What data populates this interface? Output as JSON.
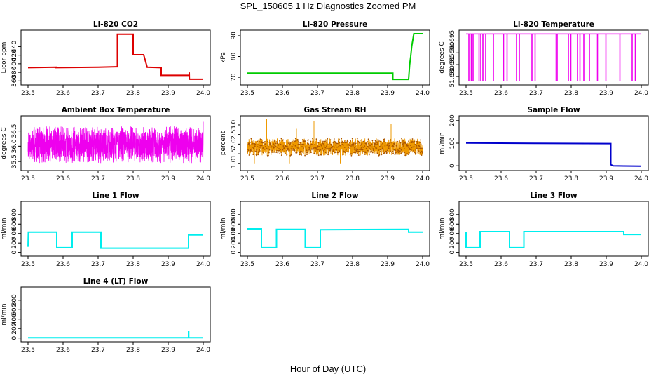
{
  "figure": {
    "title": "SPL_150605  1 Hz Diagnostics Zoomed PM",
    "x_axis_title": "Hour of Day (UTC)"
  },
  "chart_data": [
    {
      "type": "line",
      "title": "Li-820 CO2",
      "xlabel": "",
      "ylabel": "Licor ppm",
      "color": "#dd0000",
      "xlim": [
        23.5,
        24.0
      ],
      "ylim": [
        354,
        475
      ],
      "xticks": [
        "23.5",
        "23.6",
        "23.7",
        "23.8",
        "23.9",
        "24.0"
      ],
      "yticks": [
        "360",
        "380",
        "400",
        "420",
        "440"
      ],
      "x": [
        23.5,
        23.58,
        23.58,
        23.7,
        23.75,
        23.755,
        23.755,
        23.8,
        23.8,
        23.83,
        23.83,
        23.84,
        23.84,
        23.88,
        23.88,
        23.96,
        23.96,
        23.9605,
        23.9605,
        24.0
      ],
      "series": [
        {
          "values": [
            391,
            392,
            391,
            392,
            393,
            393,
            469,
            469,
            421,
            421,
            421,
            392,
            392,
            391,
            373,
            373,
            380,
            364,
            364,
            364
          ]
        }
      ],
      "grid": false,
      "legend": "none"
    },
    {
      "type": "line",
      "title": "Li-820 Pressure",
      "xlabel": "",
      "ylabel": "kPa",
      "color": "#00cc00",
      "xlim": [
        23.5,
        24.0
      ],
      "ylim": [
        67,
        92
      ],
      "xticks": [
        "23.5",
        "23.6",
        "23.7",
        "23.8",
        "23.9",
        "24.0"
      ],
      "yticks": [
        "70",
        "80",
        "90"
      ],
      "x": [
        23.5,
        23.915,
        23.915,
        23.96,
        23.963,
        23.966,
        23.969,
        23.972,
        23.975,
        24.0
      ],
      "series": [
        {
          "values": [
            72,
            72,
            69,
            69,
            76,
            80,
            85,
            88,
            91,
            91
          ]
        }
      ],
      "grid": false,
      "legend": "none"
    },
    {
      "type": "line",
      "title": "Li-820 Temperature",
      "xlabel": "",
      "ylabel": "degrees C",
      "color": "#ee00ee",
      "xlim": [
        23.5,
        24.0
      ],
      "ylim": [
        51.677,
        51.699
      ],
      "xticks": [
        "23.5",
        "23.6",
        "23.7",
        "23.8",
        "23.9",
        "24.0"
      ],
      "yticks": [
        "51.680",
        "51.685",
        "51.690",
        "51.695"
      ],
      "baseline": 51.698,
      "low_value": 51.678,
      "spikes_x": [
        23.508,
        23.515,
        23.52,
        23.537,
        23.542,
        23.548,
        23.556,
        23.578,
        23.607,
        23.617,
        23.644,
        23.652,
        23.688,
        23.697,
        23.757,
        23.76,
        23.792,
        23.799,
        23.818,
        23.825,
        23.836,
        23.852,
        23.875,
        23.899,
        23.939,
        23.974,
        23.983
      ],
      "grid": false,
      "legend": "none"
    },
    {
      "type": "line",
      "title": "Ambient Box Temperature",
      "xlabel": "",
      "ylabel": "degrees C",
      "color": "#ee00ee",
      "xlim": [
        23.5,
        24.0
      ],
      "ylim": [
        35.25,
        36.95
      ],
      "xticks": [
        "23.5",
        "23.6",
        "23.7",
        "23.8",
        "23.9",
        "24.0"
      ],
      "yticks": [
        "35.5",
        "36.0",
        "36.5"
      ],
      "noise": {
        "center": 36.0,
        "low": 35.45,
        "high": 36.65,
        "samples": 1800,
        "seed": 7,
        "end_value": 36.8
      },
      "grid": false,
      "legend": "none"
    },
    {
      "type": "scatter",
      "title": "Gas Stream RH",
      "xlabel": "",
      "ylabel": "percent",
      "color": "#ee9900",
      "xlim": [
        23.5,
        24.0
      ],
      "ylim": [
        0.7,
        3.4
      ],
      "xticks": [
        "23.5",
        "23.6",
        "23.7",
        "23.8",
        "23.9",
        "24.0"
      ],
      "yticks": [
        "1.0",
        "1.5",
        "2.0",
        "2.5",
        "3.0"
      ],
      "noise": {
        "center": 1.85,
        "low": 1.4,
        "high": 2.3,
        "samples": 1800,
        "seed": 11,
        "outliers": [
          [
            23.555,
            3.3
          ],
          [
            23.69,
            3.2
          ],
          [
            23.64,
            2.8
          ],
          [
            23.91,
            3.05
          ],
          [
            23.52,
            1.0
          ],
          [
            23.62,
            1.0
          ],
          [
            23.765,
            1.0
          ],
          [
            23.995,
            0.85
          ]
        ]
      },
      "grid": false,
      "legend": "none"
    },
    {
      "type": "line",
      "title": "Sample Flow",
      "xlabel": "",
      "ylabel": "ml/min",
      "color": "#0000cc",
      "xlim": [
        23.5,
        24.0
      ],
      "ylim": [
        -15,
        215
      ],
      "xticks": [
        "23.5",
        "23.6",
        "23.7",
        "23.8",
        "23.9",
        "24.0"
      ],
      "yticks": [
        "0",
        "100",
        "200"
      ],
      "x": [
        23.5,
        23.7,
        23.913,
        23.913,
        23.92,
        23.95,
        24.0
      ],
      "series": [
        {
          "values": [
            101,
            99,
            98,
            5,
            0,
            -1,
            -2
          ]
        }
      ],
      "grid": false,
      "legend": "none"
    },
    {
      "type": "line",
      "title": "Line 1 Flow",
      "xlabel": "",
      "ylabel": "ml/min",
      "color": "#00eeee",
      "xlim": [
        23.5,
        24.0
      ],
      "ylim": [
        -50,
        1050
      ],
      "xticks": [
        "23.5",
        "23.6",
        "23.7",
        "23.8",
        "23.9",
        "24.0"
      ],
      "yticks": [
        "0",
        "200",
        "400",
        "600",
        "800"
      ],
      "x": [
        23.5,
        23.501,
        23.582,
        23.582,
        23.626,
        23.626,
        23.708,
        23.708,
        23.958,
        23.958,
        24.0
      ],
      "series": [
        {
          "values": [
            120,
            430,
            430,
            100,
            100,
            430,
            430,
            90,
            90,
            370,
            370
          ]
        }
      ],
      "grid": false,
      "legend": "none"
    },
    {
      "type": "line",
      "title": "Line 2 Flow",
      "xlabel": "",
      "ylabel": "ml/min",
      "color": "#00eeee",
      "xlim": [
        23.5,
        24.0
      ],
      "ylim": [
        -50,
        1050
      ],
      "xticks": [
        "23.5",
        "23.6",
        "23.7",
        "23.8",
        "23.9",
        "24.0"
      ],
      "yticks": [
        "0",
        "200",
        "400",
        "600",
        "800"
      ],
      "x": [
        23.5,
        23.54,
        23.54,
        23.583,
        23.583,
        23.665,
        23.665,
        23.708,
        23.708,
        23.96,
        23.96,
        24.0
      ],
      "series": [
        {
          "values": [
            500,
            500,
            100,
            100,
            490,
            490,
            100,
            100,
            480,
            490,
            430,
            430
          ]
        }
      ],
      "grid": false,
      "legend": "none"
    },
    {
      "type": "line",
      "title": "Line 3 Flow",
      "xlabel": "",
      "ylabel": "ml/min",
      "color": "#00eeee",
      "xlim": [
        23.5,
        24.0
      ],
      "ylim": [
        -50,
        1050
      ],
      "xticks": [
        "23.5",
        "23.6",
        "23.7",
        "23.8",
        "23.9",
        "24.0"
      ],
      "yticks": [
        "0",
        "200",
        "400",
        "600",
        "800"
      ],
      "x": [
        23.5,
        23.5,
        23.54,
        23.54,
        23.624,
        23.624,
        23.665,
        23.665,
        23.95,
        23.95,
        24.0
      ],
      "series": [
        {
          "values": [
            430,
            100,
            100,
            440,
            440,
            100,
            100,
            440,
            440,
            380,
            380
          ]
        }
      ],
      "grid": false,
      "legend": "none"
    },
    {
      "type": "line",
      "title": "Line 4 (LT) Flow",
      "xlabel": "",
      "ylabel": "ml/min",
      "color": "#00eeee",
      "xlim": [
        23.5,
        24.0
      ],
      "ylim": [
        -50,
        1050
      ],
      "xticks": [
        "23.5",
        "23.6",
        "23.7",
        "23.8",
        "23.9",
        "24.0"
      ],
      "yticks": [
        "0",
        "200",
        "400",
        "600",
        "800"
      ],
      "x": [
        23.5,
        23.958,
        23.958,
        23.9585,
        23.9585,
        24.0
      ],
      "series": [
        {
          "values": [
            5,
            5,
            140,
            140,
            5,
            5
          ]
        }
      ],
      "grid": false,
      "legend": "none"
    }
  ]
}
